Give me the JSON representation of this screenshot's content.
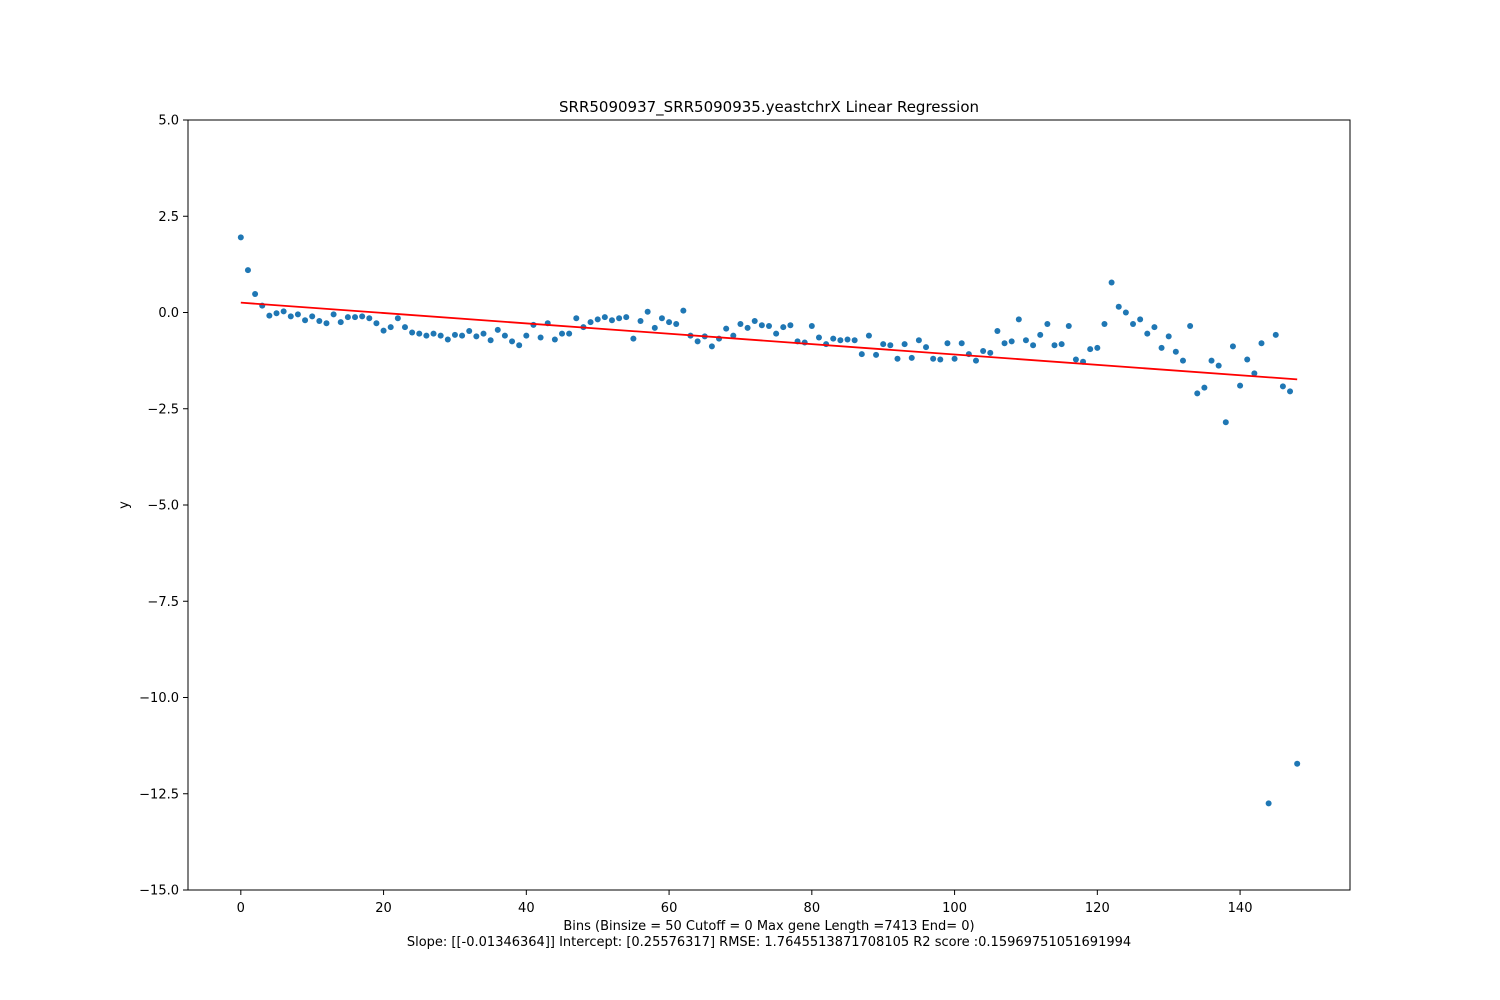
{
  "chart_data": {
    "type": "scatter",
    "title": "SRR5090937_SRR5090935.yeastchrX Linear Regression",
    "xlabel": "Bins  (Binsize = 50 Cutoff = 0 Max gene Length =7413 End= 0)",
    "caption": "Slope: [[-0.01346364]] Intercept: [0.25576317] RMSE: 1.7645513871708105 R2 score :0.15969751051691994",
    "ylabel": "y",
    "xlim": [
      -7.4,
      155.4
    ],
    "ylim": [
      -15.0,
      5.0
    ],
    "xticks": [
      0,
      20,
      40,
      60,
      80,
      100,
      120,
      140
    ],
    "xtick_labels": [
      "0",
      "20",
      "40",
      "60",
      "80",
      "100",
      "120",
      "140"
    ],
    "yticks": [
      5.0,
      2.5,
      0.0,
      -2.5,
      -5.0,
      -7.5,
      -10.0,
      -12.5,
      -15.0
    ],
    "ytick_labels": [
      "5.0",
      "2.5",
      "0.0",
      "−2.5",
      "−5.0",
      "−7.5",
      "−10.0",
      "−12.5",
      "−15.0"
    ],
    "grid": false,
    "point_color": "#1f77b4",
    "line_color": "#ff0000",
    "x": [
      0,
      1,
      2,
      3,
      4,
      5,
      6,
      7,
      8,
      9,
      10,
      11,
      12,
      13,
      14,
      15,
      16,
      17,
      18,
      19,
      20,
      21,
      22,
      23,
      24,
      25,
      26,
      27,
      28,
      29,
      30,
      31,
      32,
      33,
      34,
      35,
      36,
      37,
      38,
      39,
      40,
      41,
      42,
      43,
      44,
      45,
      46,
      47,
      48,
      49,
      50,
      51,
      52,
      53,
      54,
      55,
      56,
      57,
      58,
      59,
      60,
      61,
      62,
      63,
      64,
      65,
      66,
      67,
      68,
      69,
      70,
      71,
      72,
      73,
      74,
      75,
      76,
      77,
      78,
      79,
      80,
      81,
      82,
      83,
      84,
      85,
      86,
      87,
      88,
      89,
      90,
      91,
      92,
      93,
      94,
      95,
      96,
      97,
      98,
      99,
      100,
      101,
      102,
      103,
      104,
      105,
      106,
      107,
      108,
      109,
      110,
      111,
      112,
      113,
      114,
      115,
      116,
      117,
      118,
      119,
      120,
      121,
      122,
      123,
      124,
      125,
      126,
      127,
      128,
      129,
      130,
      131,
      132,
      133,
      134,
      135,
      136,
      137,
      138,
      139,
      140,
      141,
      142,
      143,
      144,
      145,
      146,
      147,
      148
    ],
    "y": [
      1.95,
      1.1,
      0.48,
      0.18,
      -0.08,
      -0.02,
      0.03,
      -0.1,
      -0.05,
      -0.2,
      -0.1,
      -0.22,
      -0.28,
      -0.05,
      -0.25,
      -0.12,
      -0.12,
      -0.1,
      -0.15,
      -0.28,
      -0.47,
      -0.38,
      -0.15,
      -0.38,
      -0.52,
      -0.55,
      -0.6,
      -0.55,
      -0.6,
      -0.7,
      -0.58,
      -0.6,
      -0.48,
      -0.62,
      -0.55,
      -0.72,
      -0.45,
      -0.6,
      -0.75,
      -0.85,
      -0.6,
      -0.32,
      -0.65,
      -0.28,
      -0.7,
      -0.55,
      -0.55,
      -0.15,
      -0.38,
      -0.25,
      -0.18,
      -0.12,
      -0.2,
      -0.15,
      -0.12,
      -0.68,
      -0.22,
      0.02,
      -0.4,
      -0.15,
      -0.25,
      -0.3,
      0.05,
      -0.6,
      -0.75,
      -0.62,
      -0.88,
      -0.68,
      -0.42,
      -0.6,
      -0.3,
      -0.4,
      -0.22,
      -0.33,
      -0.35,
      -0.55,
      -0.38,
      -0.33,
      -0.75,
      -0.78,
      -0.35,
      -0.65,
      -0.82,
      -0.68,
      -0.72,
      -0.7,
      -0.72,
      -1.08,
      -0.6,
      -1.1,
      -0.82,
      -0.85,
      -1.2,
      -0.82,
      -1.18,
      -0.72,
      -0.9,
      -1.2,
      -1.22,
      -0.8,
      -1.2,
      -0.8,
      -1.08,
      -1.25,
      -1.0,
      -1.05,
      -0.48,
      -0.8,
      -0.75,
      -0.18,
      -0.72,
      -0.85,
      -0.58,
      -0.3,
      -0.85,
      -0.82,
      -0.35,
      -1.22,
      -1.28,
      -0.95,
      -0.92,
      -0.3,
      0.78,
      0.15,
      0.0,
      -0.3,
      -0.18,
      -0.55,
      -0.38,
      -0.92,
      -0.62,
      -1.02,
      -1.25,
      -0.35,
      -2.1,
      -1.95,
      -1.25,
      -1.38,
      -2.85,
      -0.88,
      -1.9,
      -1.22,
      -1.58,
      -0.8,
      -12.75,
      -0.58,
      -1.92,
      -2.05,
      -11.72
    ],
    "regression": {
      "slope": -0.01346364,
      "intercept": 0.25576317,
      "x_range": [
        0,
        148
      ]
    }
  }
}
